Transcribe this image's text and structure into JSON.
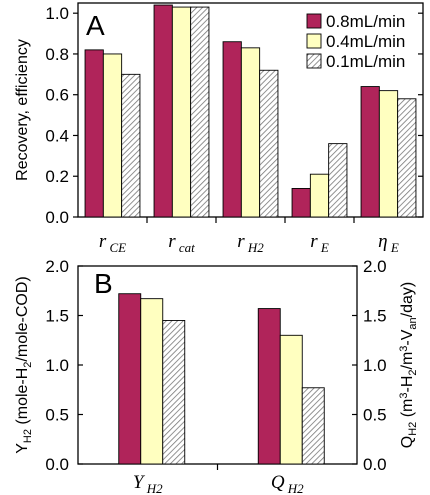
{
  "chart_data": [
    {
      "type": "bar",
      "panel": "A",
      "ylabel": "Recovery, efficiency",
      "ylim": [
        0,
        1.05
      ],
      "yticks": [
        "0.0",
        "0.2",
        "0.4",
        "0.6",
        "0.8",
        "1.0"
      ],
      "categories": [
        {
          "sym": "r",
          "sub": "CE"
        },
        {
          "sym": "r",
          "sub": "cat"
        },
        {
          "sym": "r",
          "sub": "H2"
        },
        {
          "sym": "r",
          "sub": "E"
        },
        {
          "sym": "η",
          "sub": "E"
        }
      ],
      "series": [
        {
          "name": "0.8mL/min",
          "values": [
            0.82,
            1.04,
            0.86,
            0.14,
            0.64
          ]
        },
        {
          "name": "0.4mL/min",
          "values": [
            0.8,
            1.03,
            0.83,
            0.21,
            0.62
          ]
        },
        {
          "name": "0.1mL/min",
          "values": [
            0.7,
            1.03,
            0.72,
            0.36,
            0.58
          ]
        }
      ],
      "legend": "top-right"
    },
    {
      "type": "bar",
      "panel": "B",
      "ylabel_left": "Y_H2 (mole-H2/mole-COD)",
      "ylabel_right": "Q_H2 (m3-H2/m3-V_an/day)",
      "ylim": [
        0,
        2.0
      ],
      "yticks": [
        "0.0",
        "0.5",
        "1.0",
        "1.5",
        "2.0"
      ],
      "categories": [
        {
          "sym": "Y",
          "sub": "H2"
        },
        {
          "sym": "Q",
          "sub": "H2"
        }
      ],
      "series": [
        {
          "name": "0.8mL/min",
          "values": [
            1.72,
            1.57
          ]
        },
        {
          "name": "0.4mL/min",
          "values": [
            1.67,
            1.3
          ]
        },
        {
          "name": "0.1mL/min",
          "values": [
            1.45,
            0.77
          ]
        }
      ]
    }
  ],
  "colors": {
    "series": [
      "#b0245a",
      "#ffffc0",
      "hatch"
    ]
  }
}
